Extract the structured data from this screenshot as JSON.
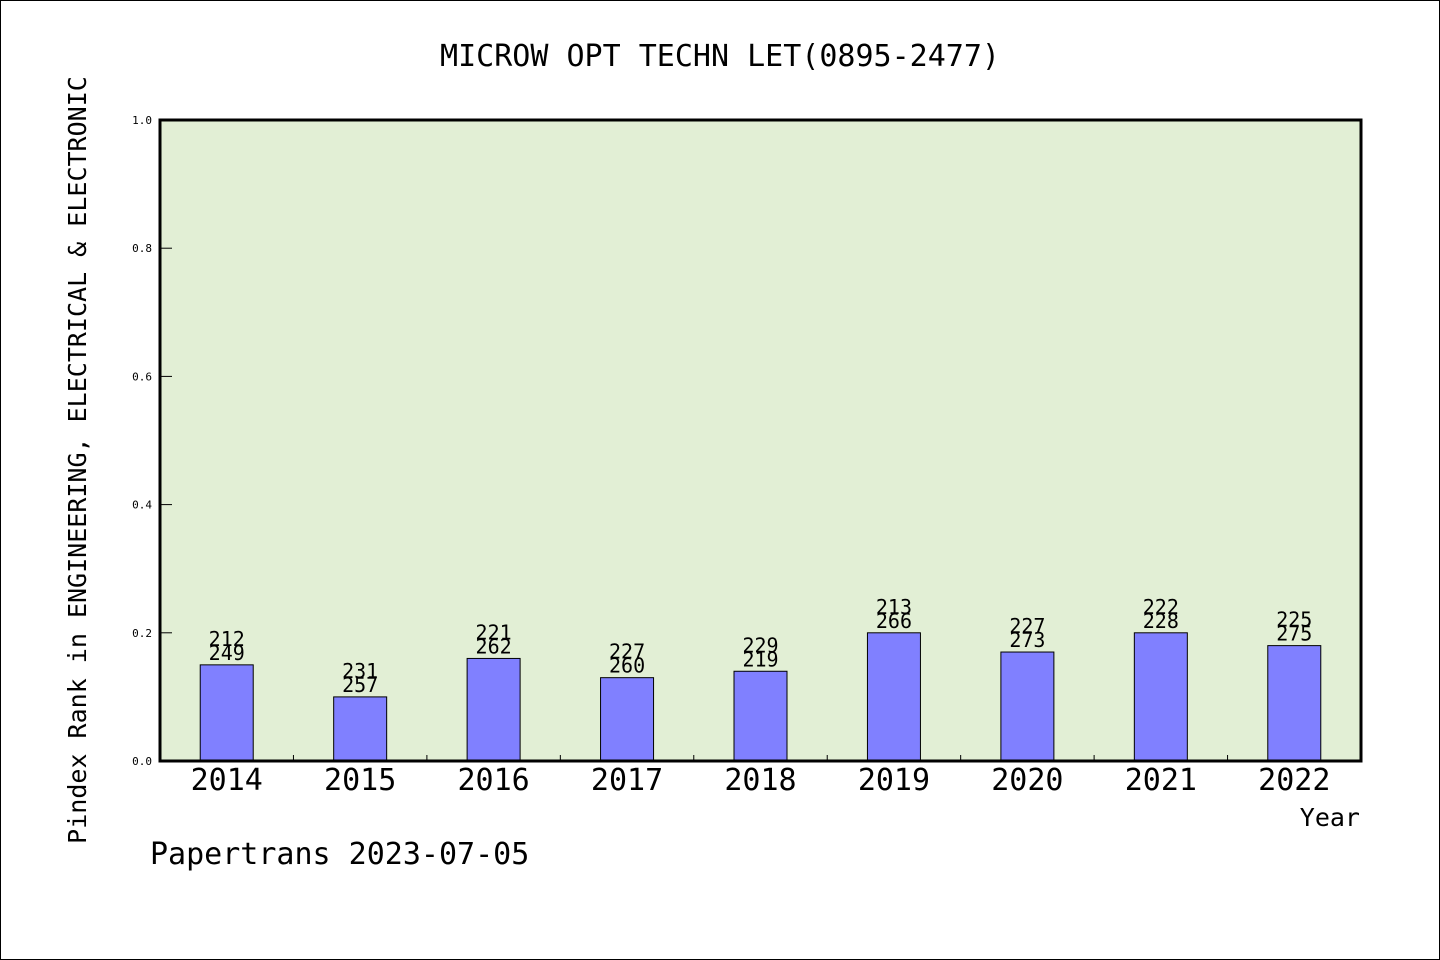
{
  "chart_data": {
    "type": "bar",
    "title": "MICROW OPT TECHN LET(0895-2477)",
    "xlabel": "Year",
    "ylabel": "Pindex Rank in ENGINEERING, ELECTRICAL & ELECTRONIC",
    "categories": [
      "2014",
      "2015",
      "2016",
      "2017",
      "2018",
      "2019",
      "2020",
      "2021",
      "2022"
    ],
    "values": [
      0.15,
      0.1,
      0.16,
      0.13,
      0.14,
      0.2,
      0.17,
      0.2,
      0.18
    ],
    "label_top": [
      "212",
      "231",
      "221",
      "227",
      "229",
      "213",
      "227",
      "222",
      "225"
    ],
    "label_bottom": [
      "249",
      "257",
      "262",
      "260",
      "219",
      "266",
      "273",
      "228",
      "275"
    ],
    "ylim": [
      0,
      1.0
    ],
    "yticks": [
      "0.0",
      "0.2",
      "0.4",
      "0.6",
      "0.8",
      "1.0"
    ],
    "grid": false,
    "colors": {
      "plot_bg": "#e2efd5",
      "bar": "#8080ff",
      "frame": "#000000"
    },
    "footer": "Papertrans 2023-07-05"
  }
}
